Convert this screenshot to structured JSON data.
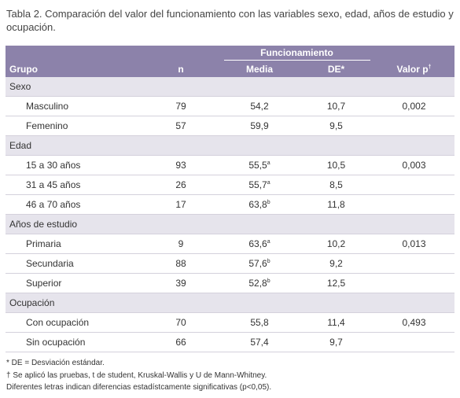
{
  "title": "Tabla 2. Comparación del valor del funcionamiento con las variables sexo, edad, años de estudio y ocupación.",
  "table": {
    "group_header": "Funcionamiento",
    "columns": [
      "Grupo",
      "n",
      "Media",
      "DE*",
      "Valor p"
    ],
    "valor_p_sup": "†",
    "sections": [
      {
        "label": "Sexo",
        "rows": [
          {
            "label": "Masculino",
            "n": "79",
            "media": "54,2",
            "de": "10,7",
            "p": "0,002"
          },
          {
            "label": "Femenino",
            "n": "57",
            "media": "59,9",
            "de": "9,5"
          }
        ]
      },
      {
        "label": "Edad",
        "rows": [
          {
            "label": "15 a 30 años",
            "n": "93",
            "media": "55,5",
            "media_sup": "a",
            "de": "10,5",
            "p": "0,003"
          },
          {
            "label": "31 a 45 años",
            "n": "26",
            "media": "55,7",
            "media_sup": "a",
            "de": "8,5"
          },
          {
            "label": "46 a 70 años",
            "n": "17",
            "media": "63,8",
            "media_sup": "b",
            "de": "11,8"
          }
        ]
      },
      {
        "label": "Años de estudio",
        "rows": [
          {
            "label": "Primaria",
            "n": "9",
            "media": "63,6",
            "media_sup": "a",
            "de": "10,2",
            "p": "0,013"
          },
          {
            "label": "Secundaria",
            "n": "88",
            "media": "57,6",
            "media_sup": "b",
            "de": "9,2"
          },
          {
            "label": "Superior",
            "n": "39",
            "media": "52,8",
            "media_sup": "b",
            "de": "12,5"
          }
        ]
      },
      {
        "label": "Ocupación",
        "rows": [
          {
            "label": "Con ocupación",
            "n": "70",
            "media": "55,8",
            "de": "11,4",
            "p": "0,493"
          },
          {
            "label": "Sin ocupación",
            "n": "66",
            "media": "57,4",
            "de": "9,7"
          }
        ]
      }
    ]
  },
  "footnotes": [
    "* DE = Desviación estándar.",
    "† Se aplicó las pruebas, t de student, Kruskal-Wallis y U de Mann-Whitney.",
    "Diferentes letras indican diferencias estadístcamente significativas (p<0,05)."
  ]
}
